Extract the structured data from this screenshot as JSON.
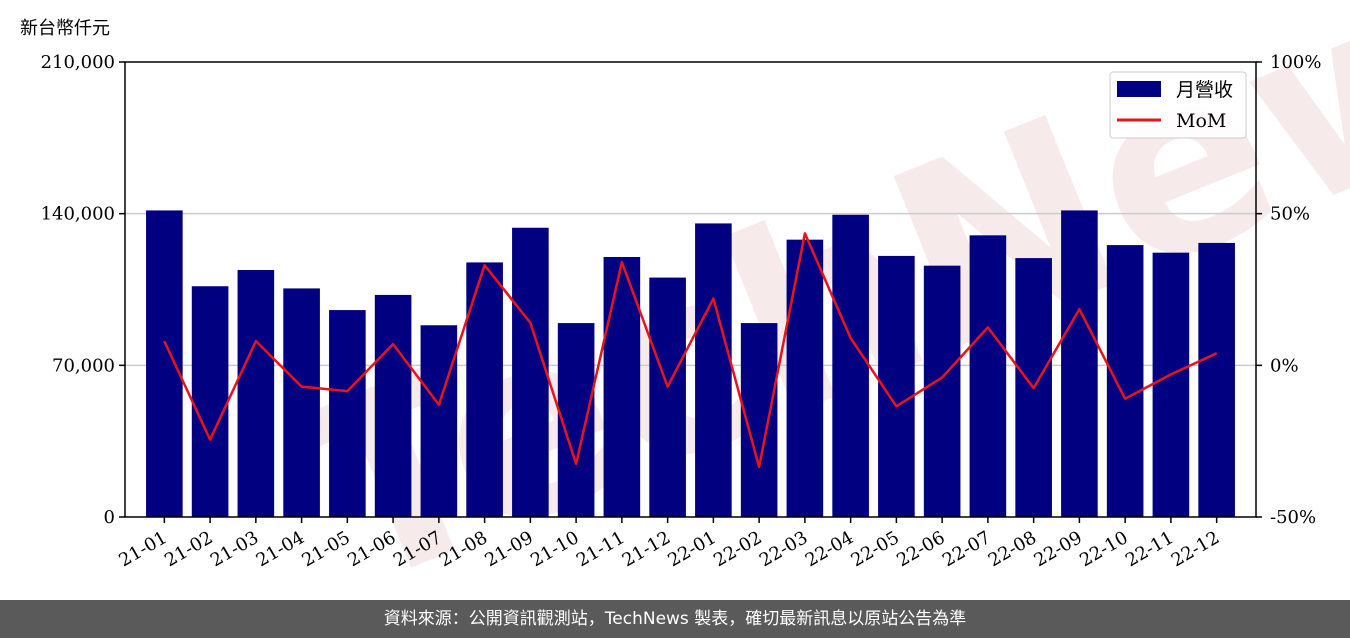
{
  "chart_data": {
    "type": "bar",
    "y_unit_label": "新台幣仟元",
    "categories": [
      "21-01",
      "21-02",
      "21-03",
      "21-04",
      "21-05",
      "21-06",
      "21-07",
      "21-08",
      "21-09",
      "21-10",
      "21-11",
      "21-12",
      "22-01",
      "22-02",
      "22-03",
      "22-04",
      "22-05",
      "22-06",
      "22-07",
      "22-08",
      "22-09",
      "22-10",
      "22-11",
      "22-12"
    ],
    "series": [
      {
        "name": "月營收",
        "kind": "bar",
        "axis": "left",
        "color": "#000080",
        "values": [
          141500,
          106500,
          114000,
          105500,
          95500,
          102500,
          88500,
          117500,
          133500,
          89500,
          120000,
          110500,
          135500,
          89500,
          128000,
          139500,
          120500,
          116000,
          130000,
          119500,
          141500,
          125500,
          122000,
          126500
        ]
      },
      {
        "name": "MoM",
        "kind": "line",
        "axis": "right",
        "color": "#e8141c",
        "values": [
          8,
          -24.5,
          8,
          -7,
          -8.5,
          7,
          -13,
          33,
          14,
          -32.5,
          34,
          -7,
          22,
          -33.5,
          43.5,
          9,
          -13.5,
          -4,
          12.5,
          -7.5,
          18.5,
          -11,
          -3,
          4
        ]
      }
    ],
    "y_left": {
      "ylim": [
        0,
        210000
      ],
      "ticks": [
        0,
        70000,
        140000,
        210000
      ],
      "tick_labels": [
        "0",
        "70,000",
        "140,000",
        "210,000"
      ]
    },
    "y_right": {
      "ylim": [
        -50,
        100
      ],
      "ticks": [
        -50,
        0,
        50,
        100
      ],
      "tick_labels": [
        "-50%",
        "0%",
        "50%",
        "100%"
      ]
    },
    "grid": "horizontal",
    "legend_position": "top-right"
  },
  "watermark_text": "TechNews",
  "footer_text": "資料來源：公開資訊觀測站，TechNews 製表，確切最新訊息以原站公告為準"
}
